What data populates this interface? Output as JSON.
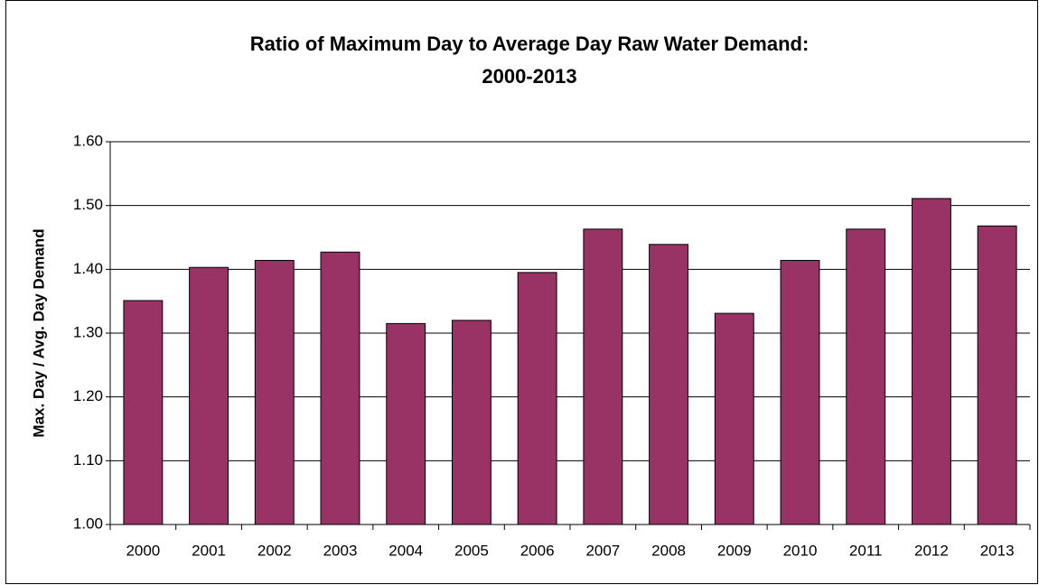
{
  "chart_data": {
    "type": "bar",
    "title": [
      "Ratio of Maximum Day to Average Day  Raw Water Demand:",
      "2000-2013"
    ],
    "y_label": "Max. Day / Avg. Day Demand",
    "categories": [
      "2000",
      "2001",
      "2002",
      "2003",
      "2004",
      "2005",
      "2006",
      "2007",
      "2008",
      "2009",
      "2010",
      "2011",
      "2012",
      "2013"
    ],
    "values": [
      1.351,
      1.403,
      1.414,
      1.427,
      1.315,
      1.32,
      1.395,
      1.463,
      1.439,
      1.331,
      1.414,
      1.463,
      1.511,
      1.468
    ],
    "color": "#993366",
    "ylim": [
      1.0,
      1.6
    ],
    "yticks": [
      {
        "value": 1.0,
        "label": "1.00"
      },
      {
        "value": 1.1,
        "label": "1.10"
      },
      {
        "value": 1.2,
        "label": "1.20"
      },
      {
        "value": 1.3,
        "label": "1.30"
      },
      {
        "value": 1.4,
        "label": "1.40"
      },
      {
        "value": 1.5,
        "label": "1.50"
      },
      {
        "value": 1.6,
        "label": "1.60"
      }
    ],
    "grid": true
  }
}
